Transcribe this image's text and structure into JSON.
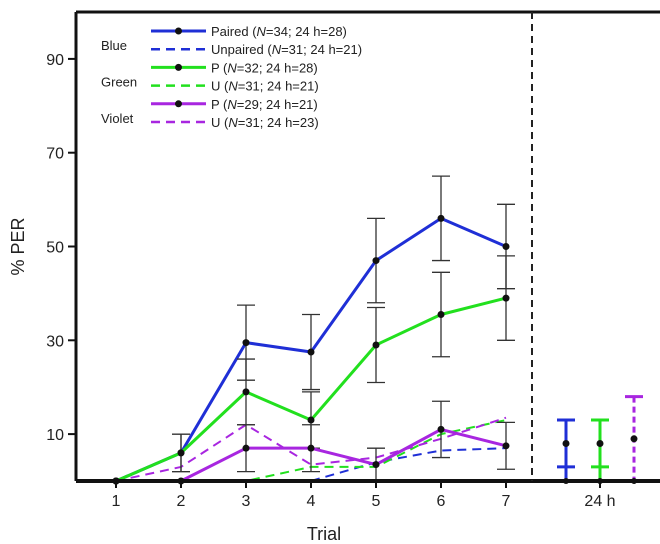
{
  "chart_data": {
    "type": "line",
    "xlabel": "Trial",
    "ylabel": "% PER",
    "x": [
      1,
      2,
      3,
      4,
      5,
      6,
      7
    ],
    "x_tick_labels": [
      "1",
      "2",
      "3",
      "4",
      "5",
      "6",
      "7"
    ],
    "extra_tick_label": "24 h",
    "y_ticks": [
      10,
      30,
      50,
      70,
      90
    ],
    "ylim": [
      0,
      100
    ],
    "legend_position": "top-left",
    "legend_groups": [
      {
        "label": "Blue"
      },
      {
        "label": "Green"
      },
      {
        "label": "Violet"
      }
    ],
    "series": [
      {
        "name_parts": [
          "Paired (",
          "N",
          "=34; 24 h=28)"
        ],
        "group": 0,
        "color": "#1f2fd6",
        "style": "solid",
        "values": [
          0,
          6,
          29.5,
          27.5,
          47,
          56,
          50
        ],
        "err": [
          0,
          4,
          8,
          8,
          9,
          9,
          9
        ],
        "h24": 8,
        "h24_err": 5
      },
      {
        "name_parts": [
          "Unpaired (",
          "N",
          "=31; 24 h=21)"
        ],
        "group": 0,
        "color": "#1f2fd6",
        "style": "dashed",
        "values": [
          0,
          0,
          0,
          0,
          4,
          6.5,
          7
        ],
        "err": null,
        "h24": 0,
        "h24_err": 0
      },
      {
        "name_parts": [
          "P (",
          "N",
          "=32; 24 h=28)"
        ],
        "group": 1,
        "color": "#22e01e",
        "style": "solid",
        "values": [
          0,
          6,
          19,
          13,
          29,
          35.5,
          39
        ],
        "err": [
          0,
          4,
          7,
          6,
          8,
          9,
          9
        ],
        "h24": 8,
        "h24_err": 5
      },
      {
        "name_parts": [
          "U (",
          "N",
          "=31; 24 h=21)"
        ],
        "group": 1,
        "color": "#22e01e",
        "style": "dashed",
        "values": [
          0,
          0,
          0,
          3,
          3,
          10,
          13
        ],
        "err": null,
        "h24": 0,
        "h24_err": 0
      },
      {
        "name_parts": [
          "P (",
          "N",
          "=29; 24 h=21)"
        ],
        "group": 2,
        "color": "#a826e0",
        "style": "solid",
        "values": [
          0,
          0,
          7,
          7,
          3.5,
          11,
          7.5
        ],
        "err": [
          0,
          0,
          5,
          5,
          3.5,
          6,
          5
        ],
        "h24": 9,
        "h24_err": 9
      },
      {
        "name_parts": [
          "U (",
          "N",
          "=31; 24 h=23)"
        ],
        "group": 2,
        "color": "#a826e0",
        "style": "dashed",
        "values": [
          0,
          3,
          12,
          3.5,
          5,
          9,
          13.5
        ],
        "err": null,
        "h24": 0,
        "h24_err": 0
      }
    ]
  }
}
